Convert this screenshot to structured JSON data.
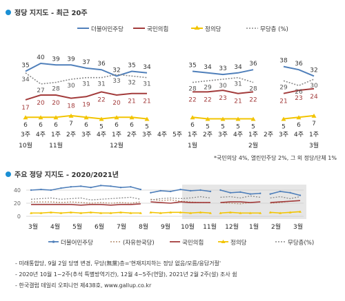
{
  "chart_data": [
    {
      "type": "line",
      "title": "정당 지지도 - 최근 20주",
      "x": [
        "3주",
        "4주",
        "1주",
        "2주",
        "3주",
        "4주",
        "1주",
        "2주",
        "3주",
        "4주",
        "5주",
        "1주",
        "2주",
        "3주",
        "4주",
        "1주",
        "2주",
        "3주",
        "4주",
        "1주"
      ],
      "x_month_labels": [
        {
          "label": "10월",
          "index": 0
        },
        {
          "label": "11월",
          "index": 2
        },
        {
          "label": "12월",
          "index": 6
        },
        {
          "label": "1월",
          "index": 11
        },
        {
          "label": "2월",
          "index": 15
        },
        {
          "label": "3월",
          "index": 19
        }
      ],
      "series": [
        {
          "name": "더불어민주당",
          "color": "#4f7fba",
          "values": [
            35,
            40,
            39,
            39,
            37,
            36,
            32,
            35,
            34,
            null,
            null,
            35,
            34,
            33,
            34,
            36,
            null,
            38,
            36,
            32
          ]
        },
        {
          "name": "국민의힘",
          "color": "#a23a3a",
          "values": [
            17,
            20,
            20,
            18,
            19,
            22,
            20,
            21,
            21,
            null,
            null,
            22,
            22,
            23,
            21,
            22,
            null,
            21,
            23,
            24
          ]
        },
        {
          "name": "정의당",
          "color": "#f2c400",
          "values": [
            6,
            6,
            6,
            7,
            6,
            5,
            6,
            6,
            5,
            null,
            null,
            6,
            5,
            5,
            5,
            5,
            null,
            5,
            6,
            7
          ]
        },
        {
          "name": "무당층 (%)",
          "color": "#888888",
          "values": [
            34,
            27,
            28,
            30,
            31,
            31,
            33,
            32,
            31,
            null,
            null,
            28,
            29,
            30,
            31,
            28,
            null,
            29,
            26,
            30
          ]
        }
      ],
      "footnote": "*국민의당 4%, 열린민주당 2%, 그 외 정당/단체 1%"
    },
    {
      "type": "line",
      "title": "주요 정당 지지도 - 2020/2021년",
      "x_month_labels": [
        "3월",
        "4월",
        "5월",
        "6월",
        "7월",
        "8월",
        "9월",
        "10월",
        "11월",
        "12월",
        "1월",
        "2월",
        "3월"
      ],
      "y_ticks": [
        0,
        20,
        40
      ],
      "shaded_range": [
        "10월",
        "3월"
      ],
      "series": [
        {
          "name": "더불어민주당",
          "color": "#4f7fba",
          "values": [
            40,
            41,
            40,
            43,
            45,
            46,
            44,
            47,
            46,
            44,
            45,
            41,
            36,
            39,
            38,
            41,
            39,
            40,
            38,
            40,
            36,
            37,
            34,
            35,
            34,
            38,
            36,
            32
          ]
        },
        {
          "name": "(자유한국당)",
          "color": "#b48a6a",
          "values": [
            22,
            22,
            22,
            21,
            22,
            21,
            20,
            21,
            20,
            21,
            20,
            22,
            26,
            24,
            25,
            23,
            22,
            21,
            21,
            21,
            20,
            19,
            21,
            22,
            20,
            21,
            23,
            24
          ]
        },
        {
          "name": "국민의힘",
          "color": "#a23a3a",
          "values": [
            18,
            18,
            18,
            18,
            18,
            17,
            18,
            18,
            17,
            18,
            18,
            19,
            22,
            21,
            20,
            22,
            21,
            21,
            21,
            21,
            22,
            22,
            21,
            22,
            21,
            22,
            23,
            24
          ]
        },
        {
          "name": "정의당",
          "color": "#f2c400",
          "values": [
            5,
            5,
            6,
            5,
            6,
            5,
            6,
            5,
            5,
            6,
            5,
            5,
            6,
            5,
            6,
            6,
            5,
            6,
            5,
            5,
            6,
            5,
            5,
            5,
            6,
            5,
            6,
            7
          ]
        },
        {
          "name": "무당층(%)",
          "color": "#888888",
          "values": [
            26,
            27,
            28,
            26,
            27,
            28,
            25,
            26,
            27,
            28,
            29,
            26,
            25,
            27,
            28,
            27,
            28,
            30,
            28,
            29,
            30,
            28,
            31,
            29,
            28,
            30,
            27,
            30
          ]
        }
      ]
    }
  ],
  "notes": [
    "- 미래통합당, 9월 2일 당명 변경, 무당(無黨)층='현재지지하는 정당 없음/모름/응답거절'",
    "- 2020년 10월 1~2주(추석 특별방역기간), 12월 4~5주(연말), 2021년 2월 2주(설) 조사 쉼",
    "- 한국갤럽 데일리 오피니언 제438호, www.gallup.co.kr"
  ]
}
